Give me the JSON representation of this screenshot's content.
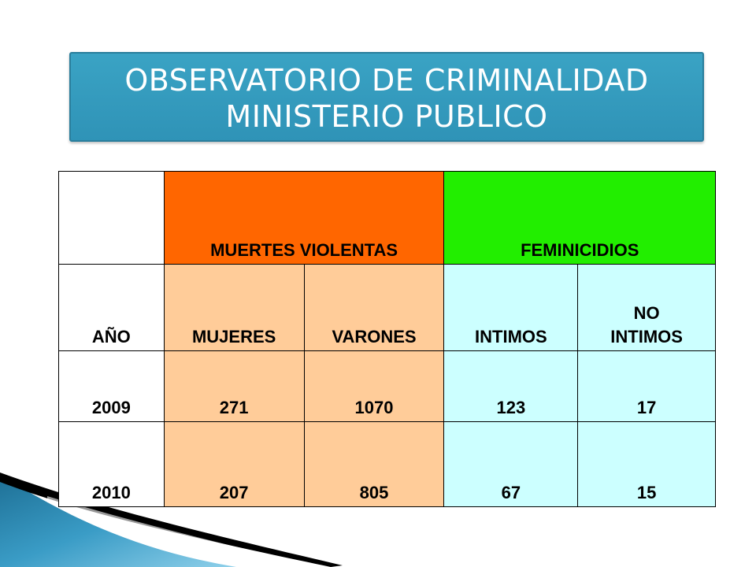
{
  "title": {
    "line1": "OBSERVATORIO DE CRIMINALIDAD",
    "line2": "MINISTERIO PUBLICO"
  },
  "table": {
    "group_headers": {
      "muertes_violentas": "MUERTES VIOLENTAS",
      "feminicidios": "FEMINICIDIOS"
    },
    "column_headers": {
      "year": "AÑO",
      "mujeres": "MUJERES",
      "varones": "VARONES",
      "intimos": "INTIMOS",
      "no_intimos_line1": "NO",
      "no_intimos_line2": "INTIMOS"
    },
    "rows": [
      {
        "year": "2009",
        "mujeres": "271",
        "varones": "1070",
        "intimos": "123",
        "no_intimos": "17"
      },
      {
        "year": "2010",
        "mujeres": "207",
        "varones": "805",
        "intimos": "67",
        "no_intimos": "15"
      }
    ]
  },
  "colors": {
    "title_box": "#3aa3c4",
    "muertes_violentas_header": "#ff6600",
    "feminicidios_header": "#22ee00",
    "muertes_violentas_cells": "#ffcc99",
    "feminicidios_cells": "#ccffff"
  }
}
